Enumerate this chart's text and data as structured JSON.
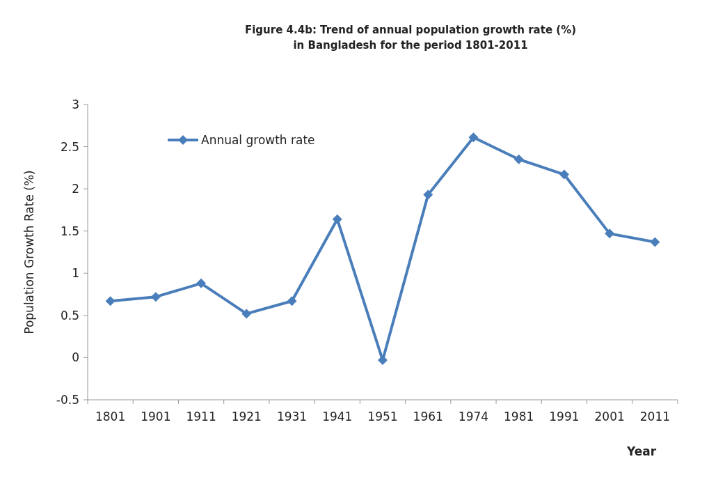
{
  "chart_data": {
    "type": "line",
    "title": "Figure 4.4b: Trend of annual population  growth rate (%)\nin Bangladesh for the period 1801-2011",
    "xlabel": "Year",
    "ylabel": "Population Growth Rate (%)",
    "categories": [
      "1801",
      "1901",
      "1911",
      "1921",
      "1931",
      "1941",
      "1951",
      "1961",
      "1974",
      "1981",
      "1991",
      "2001",
      "2011"
    ],
    "series": [
      {
        "name": "Annual growth rate",
        "color": "#4a7ebb",
        "values": [
          0.67,
          0.72,
          0.88,
          0.52,
          0.67,
          1.64,
          -0.03,
          1.93,
          2.61,
          2.35,
          2.17,
          1.47,
          1.37
        ]
      }
    ],
    "ylim": [
      -0.5,
      3
    ],
    "yticks": [
      -0.5,
      0,
      0.5,
      1,
      1.5,
      2,
      2.5,
      3
    ],
    "marker": "diamond",
    "legend": "top left",
    "grid": false
  }
}
